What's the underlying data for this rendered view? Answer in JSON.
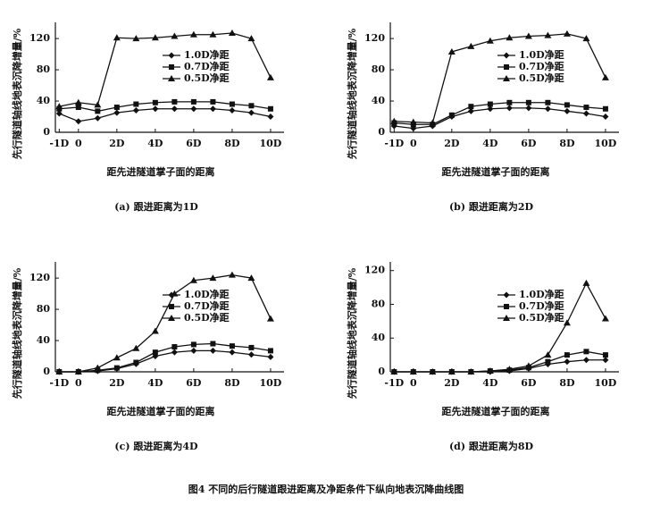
{
  "caption": "图4 不同的后行隧道跟进距离及净距条件下纵向地表沉降曲线图",
  "chart_data": [
    {
      "type": "line",
      "caption": "(a) 跟进距离为1D",
      "xlabel": "距先进隧道掌子面的距离",
      "ylabel": "先行隧道轴线地表沉降增量/%",
      "x": [
        -1,
        0,
        1,
        2,
        3,
        4,
        5,
        6,
        7,
        8,
        9,
        10
      ],
      "xlim": [
        -1.2,
        10.7
      ],
      "ylim": [
        0,
        135
      ],
      "xticks": [
        {
          "value": -1,
          "label": "-1D"
        },
        0,
        {
          "value": 2,
          "label": "2D"
        },
        {
          "value": 4,
          "label": "4D"
        },
        {
          "value": 6,
          "label": "6D"
        },
        {
          "value": 8,
          "label": "8D"
        },
        {
          "value": 10,
          "label": "10D"
        }
      ],
      "yticks": [
        0,
        40,
        80,
        120
      ],
      "series": [
        {
          "name": "1.0D净距",
          "color": "#111",
          "marker": "diamond",
          "values": [
            24,
            14,
            18,
            25,
            28,
            30,
            30,
            30,
            30,
            28,
            25,
            20
          ]
        },
        {
          "name": "0.7D净距",
          "color": "#111",
          "marker": "square",
          "values": [
            30,
            32,
            27,
            32,
            36,
            38,
            39,
            39,
            39,
            36,
            34,
            30
          ]
        },
        {
          "name": "0.5D净距",
          "color": "#111",
          "marker": "triangle",
          "values": [
            33,
            38,
            35,
            121,
            120,
            121,
            123,
            125,
            125,
            127,
            120,
            70
          ]
        }
      ]
    },
    {
      "type": "line",
      "caption": "(b) 跟进距离为2D",
      "xlabel": "距先进隧道掌子面的距离",
      "ylabel": "先行隧道轴线地表沉降增量/%",
      "x": [
        -1,
        0,
        1,
        2,
        3,
        4,
        5,
        6,
        7,
        8,
        9,
        10
      ],
      "xlim": [
        -1.2,
        10.7
      ],
      "ylim": [
        0,
        135
      ],
      "xticks": [
        {
          "value": -1,
          "label": "-1D"
        },
        0,
        {
          "value": 2,
          "label": "2D"
        },
        {
          "value": 4,
          "label": "4D"
        },
        {
          "value": 6,
          "label": "6D"
        },
        {
          "value": 8,
          "label": "8D"
        },
        {
          "value": 10,
          "label": "10D"
        }
      ],
      "yticks": [
        0,
        40,
        80,
        120
      ],
      "series": [
        {
          "name": "1.0D净距",
          "color": "#111",
          "marker": "diamond",
          "values": [
            8,
            5,
            8,
            20,
            27,
            30,
            31,
            31,
            30,
            27,
            24,
            20
          ]
        },
        {
          "name": "0.7D净距",
          "color": "#111",
          "marker": "square",
          "values": [
            12,
            10,
            10,
            22,
            33,
            36,
            38,
            38,
            38,
            35,
            32,
            30
          ]
        },
        {
          "name": "0.5D净距",
          "color": "#111",
          "marker": "triangle",
          "values": [
            14,
            13,
            12,
            103,
            110,
            117,
            121,
            123,
            124,
            126,
            120,
            70
          ]
        }
      ]
    },
    {
      "type": "line",
      "caption": "(c) 跟进距离为4D",
      "xlabel": "距先进隧道掌子面的距离",
      "ylabel": "先行隧道轴线地表沉降增量/%",
      "x": [
        -1,
        0,
        1,
        2,
        3,
        4,
        5,
        6,
        7,
        8,
        9,
        10
      ],
      "xlim": [
        -1.2,
        10.7
      ],
      "ylim": [
        0,
        135
      ],
      "xticks": [
        {
          "value": -1,
          "label": "-1D"
        },
        0,
        {
          "value": 2,
          "label": "2D"
        },
        {
          "value": 4,
          "label": "4D"
        },
        {
          "value": 6,
          "label": "6D"
        },
        {
          "value": 8,
          "label": "8D"
        },
        {
          "value": 10,
          "label": "10D"
        }
      ],
      "yticks": [
        0,
        40,
        80,
        120
      ],
      "series": [
        {
          "name": "1.0D净距",
          "color": "#111",
          "marker": "diamond",
          "values": [
            0,
            0,
            1,
            4,
            10,
            20,
            25,
            27,
            27,
            25,
            22,
            19
          ]
        },
        {
          "name": "0.7D净距",
          "color": "#111",
          "marker": "square",
          "values": [
            0,
            0,
            2,
            5,
            12,
            25,
            32,
            35,
            36,
            33,
            31,
            27
          ]
        },
        {
          "name": "0.5D净距",
          "color": "#111",
          "marker": "triangle",
          "values": [
            0,
            0,
            5,
            18,
            30,
            52,
            100,
            117,
            120,
            124,
            120,
            68
          ]
        }
      ]
    },
    {
      "type": "line",
      "caption": "(d) 跟进距离为8D",
      "xlabel": "距先进隧道掌子面的距离",
      "ylabel": "先行隧道轴线地表沉降增量/%",
      "x": [
        -1,
        0,
        1,
        2,
        3,
        4,
        5,
        6,
        7,
        8,
        9,
        10
      ],
      "xlim": [
        -1.2,
        10.7
      ],
      "ylim": [
        0,
        125
      ],
      "xticks": [
        {
          "value": -1,
          "label": "-1D"
        },
        0,
        {
          "value": 2,
          "label": "2D"
        },
        {
          "value": 4,
          "label": "4D"
        },
        {
          "value": 6,
          "label": "6D"
        },
        {
          "value": 8,
          "label": "8D"
        },
        {
          "value": 10,
          "label": "10D"
        }
      ],
      "yticks": [
        0,
        40,
        80,
        120
      ],
      "series": [
        {
          "name": "1.0D净距",
          "color": "#111",
          "marker": "diamond",
          "values": [
            0,
            0,
            0,
            0,
            0,
            0,
            1,
            4,
            9,
            12,
            14,
            14
          ]
        },
        {
          "name": "0.7D净距",
          "color": "#111",
          "marker": "square",
          "values": [
            0,
            0,
            0,
            0,
            0,
            1,
            2,
            5,
            12,
            20,
            24,
            20
          ]
        },
        {
          "name": "0.5D净距",
          "color": "#111",
          "marker": "triangle",
          "values": [
            0,
            0,
            0,
            0,
            0,
            1,
            3,
            7,
            20,
            58,
            105,
            63
          ]
        }
      ]
    }
  ]
}
